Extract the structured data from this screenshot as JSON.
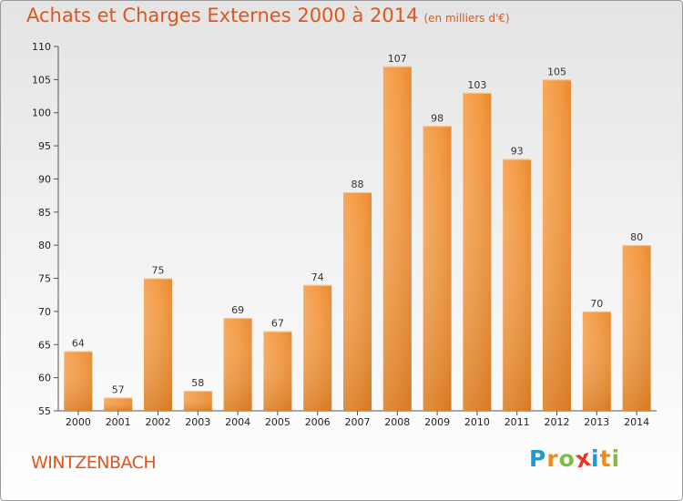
{
  "title": "Achats et Charges Externes 2000 à 2014",
  "unit": "(en milliers d'€)",
  "commune": "WINTZENBACH",
  "logo": [
    "P",
    "r",
    "o",
    "x",
    "i",
    "t",
    "i"
  ],
  "logo_colors": [
    "#1e9ad6",
    "#f08a1c",
    "#7ac143",
    "#e8352e",
    "#1e9ad6",
    "#f08a1c",
    "#7ac143"
  ],
  "colors": {
    "accent": "#e0561c",
    "bar_light": "#f6a350",
    "bar_dark": "#d9781e"
  },
  "chart_data": {
    "type": "bar",
    "categories": [
      "2000",
      "2001",
      "2002",
      "2003",
      "2004",
      "2005",
      "2006",
      "2007",
      "2008",
      "2009",
      "2010",
      "2011",
      "2012",
      "2013",
      "2014"
    ],
    "values": [
      64,
      57,
      75,
      58,
      69,
      67,
      74,
      88,
      107,
      98,
      103,
      93,
      105,
      70,
      80
    ],
    "title": "Achats et Charges Externes 2000 à 2014",
    "ylim": [
      55,
      110
    ],
    "yticks": [
      55,
      60,
      65,
      70,
      75,
      80,
      85,
      90,
      95,
      100,
      105,
      110
    ],
    "grid": false,
    "legend": "none"
  }
}
